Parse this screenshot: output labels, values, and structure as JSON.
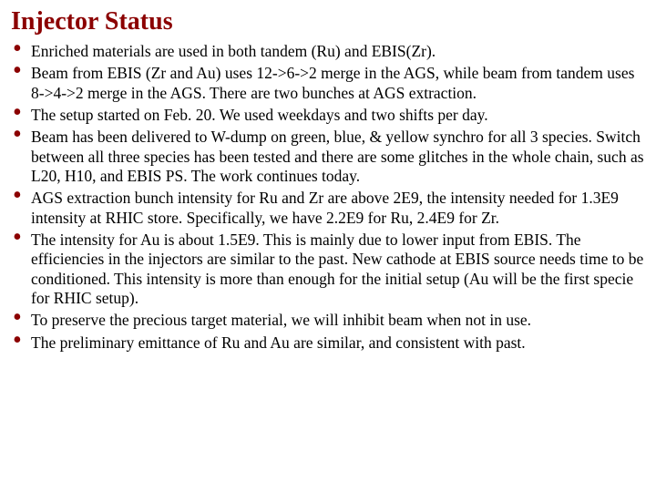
{
  "title": "Injector Status",
  "title_color": "#8b0000",
  "title_fontsize": 28,
  "body_fontsize": 17.5,
  "bullet_color": "#8b0000",
  "text_color": "#000000",
  "background_color": "#ffffff",
  "bullets": [
    "Enriched materials are used in both tandem (Ru) and EBIS(Zr).",
    "Beam from EBIS (Zr and Au) uses 12->6->2 merge in the AGS, while beam from tandem uses 8->4->2 merge in the AGS. There are two bunches at AGS extraction.",
    "The setup started on Feb. 20. We used weekdays and two shifts per day.",
    "Beam has been delivered to W-dump on green, blue, & yellow synchro for all 3 species. Switch between all three species has been tested and there are some glitches in the whole chain, such as L20, H10, and EBIS PS. The work continues today.",
    "AGS extraction bunch intensity for Ru and Zr are above 2E9, the intensity needed for 1.3E9 intensity at RHIC store. Specifically, we have 2.2E9 for Ru, 2.4E9 for Zr.",
    "The intensity for Au is about 1.5E9. This is mainly due to lower input from EBIS. The efficiencies in the injectors are similar to the past. New cathode at EBIS source needs time to be conditioned. This intensity is more than enough for the initial setup (Au will be the first specie for RHIC setup).",
    "To preserve the precious target material, we will inhibit beam when not in use.",
    "The preliminary emittance of Ru and Au are similar, and consistent with past."
  ]
}
